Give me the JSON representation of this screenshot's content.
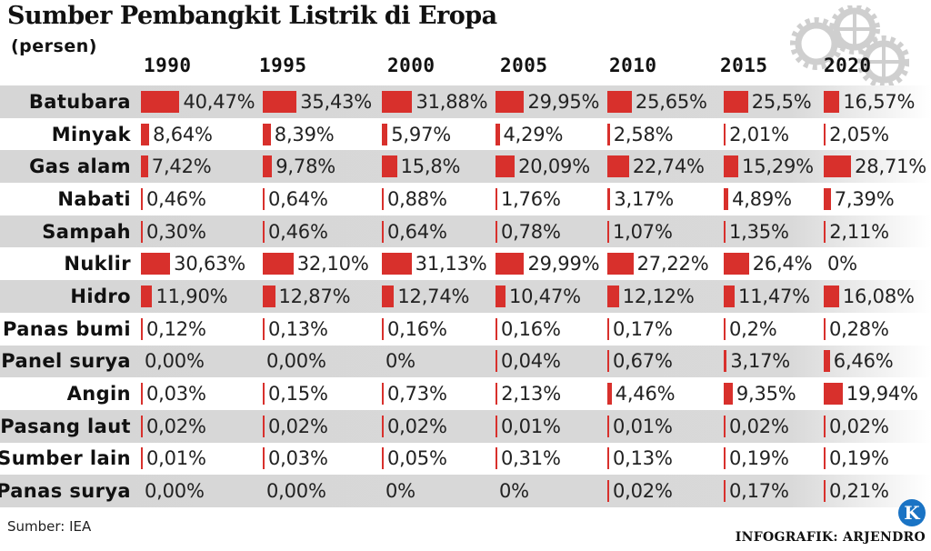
{
  "title": "Sumber Pembangkit Listrik di Eropa",
  "subtitle": "(persen)",
  "source": "Sumber: IEA",
  "credit": "INFOGRAFIK: ARJENDRO",
  "logo_letter": "K",
  "bar_color": "#d8302c",
  "chart_data": {
    "type": "table",
    "title": "Sumber Pembangkit Listrik di Eropa",
    "unit": "persen",
    "years": [
      "1990",
      "1995",
      "2000",
      "2005",
      "2010",
      "2015",
      "2020"
    ],
    "rows": [
      {
        "name": "Batubara",
        "values": [
          40.47,
          35.43,
          31.88,
          29.95,
          25.65,
          25.5,
          16.57
        ],
        "labels": [
          "40,47%",
          "35,43%",
          "31,88%",
          "29,95%",
          "25,65%",
          "25,5%",
          "16,57%"
        ]
      },
      {
        "name": "Minyak",
        "values": [
          8.64,
          8.39,
          5.97,
          4.29,
          2.58,
          2.01,
          2.05
        ],
        "labels": [
          "8,64%",
          "8,39%",
          "5,97%",
          "4,29%",
          "2,58%",
          "2,01%",
          "2,05%"
        ]
      },
      {
        "name": "Gas alam",
        "values": [
          7.42,
          9.78,
          15.8,
          20.09,
          22.74,
          15.29,
          28.71
        ],
        "labels": [
          "7,42%",
          "9,78%",
          "15,8%",
          "20,09%",
          "22,74%",
          "15,29%",
          "28,71%"
        ]
      },
      {
        "name": "Nabati",
        "values": [
          0.46,
          0.64,
          0.88,
          1.76,
          3.17,
          4.89,
          7.39
        ],
        "labels": [
          "0,46%",
          "0,64%",
          "0,88%",
          "1,76%",
          "3,17%",
          "4,89%",
          "7,39%"
        ]
      },
      {
        "name": "Sampah",
        "values": [
          0.3,
          0.46,
          0.64,
          0.78,
          1.07,
          1.35,
          2.11
        ],
        "labels": [
          "0,30%",
          "0,46%",
          "0,64%",
          "0,78%",
          "1,07%",
          "1,35%",
          "2,11%"
        ]
      },
      {
        "name": "Nuklir",
        "values": [
          30.63,
          32.1,
          31.13,
          29.99,
          27.22,
          26.4,
          0
        ],
        "labels": [
          "30,63%",
          "32,10%",
          "31,13%",
          "29,99%",
          "27,22%",
          "26,4%",
          "0%"
        ]
      },
      {
        "name": "Hidro",
        "values": [
          11.9,
          12.87,
          12.74,
          10.47,
          12.12,
          11.47,
          16.08
        ],
        "labels": [
          "11,90%",
          "12,87%",
          "12,74%",
          "10,47%",
          "12,12%",
          "11,47%",
          "16,08%"
        ]
      },
      {
        "name": "Panas bumi",
        "values": [
          0.12,
          0.13,
          0.16,
          0.16,
          0.17,
          0.2,
          0.28
        ],
        "labels": [
          "0,12%",
          "0,13%",
          "0,16%",
          "0,16%",
          "0,17%",
          "0,2%",
          "0,28%"
        ]
      },
      {
        "name": "Panel surya",
        "values": [
          0.0,
          0.0,
          0,
          0.04,
          0.67,
          3.17,
          6.46
        ],
        "labels": [
          "0,00%",
          "0,00%",
          "0%",
          "0,04%",
          "0,67%",
          "3,17%",
          "6,46%"
        ]
      },
      {
        "name": "Angin",
        "values": [
          0.03,
          0.15,
          0.73,
          2.13,
          4.46,
          9.35,
          19.94
        ],
        "labels": [
          "0,03%",
          "0,15%",
          "0,73%",
          "2,13%",
          "4,46%",
          "9,35%",
          "19,94%"
        ]
      },
      {
        "name": "Pasang laut",
        "values": [
          0.02,
          0.02,
          0.02,
          0.01,
          0.01,
          0.02,
          0.02
        ],
        "labels": [
          "0,02%",
          "0,02%",
          "0,02%",
          "0,01%",
          "0,01%",
          "0,02%",
          "0,02%"
        ]
      },
      {
        "name": "Sumber lain",
        "values": [
          0.01,
          0.03,
          0.05,
          0.31,
          0.13,
          0.19,
          0.19
        ],
        "labels": [
          "0,01%",
          "0,03%",
          "0,05%",
          "0,31%",
          "0,13%",
          "0,19%",
          "0,19%"
        ]
      },
      {
        "name": "Panas surya",
        "values": [
          0.0,
          0.0,
          0,
          0,
          0.02,
          0.17,
          0.21
        ],
        "labels": [
          "0,00%",
          "0,00%",
          "0%",
          "0%",
          "0,02%",
          "0,17%",
          "0,21%"
        ]
      }
    ]
  }
}
